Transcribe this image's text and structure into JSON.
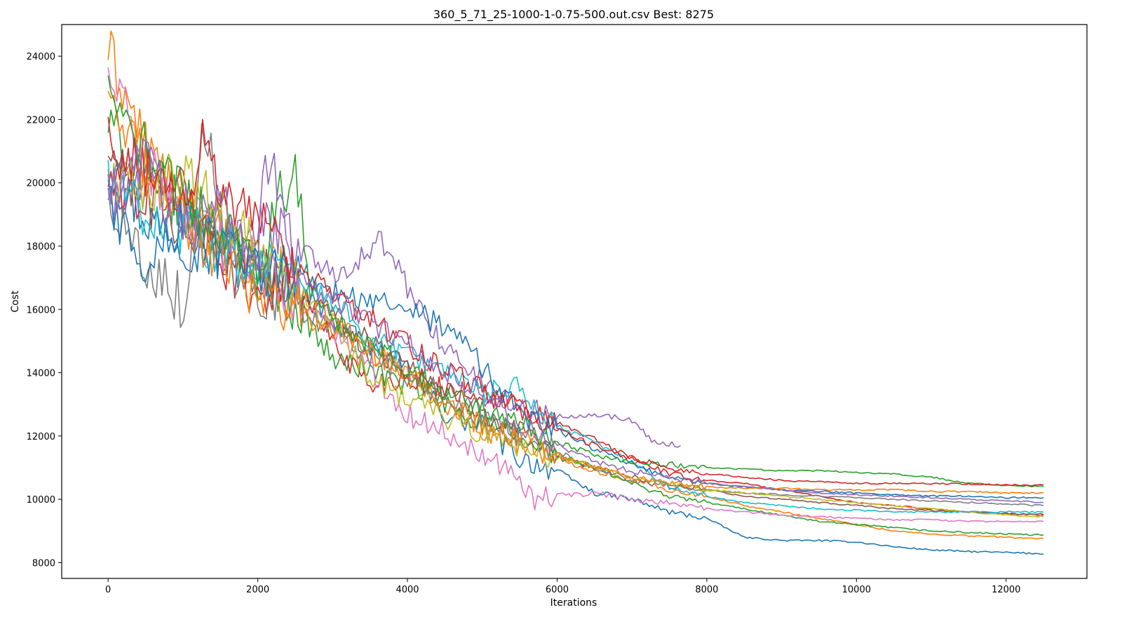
{
  "chart_data": {
    "type": "line",
    "title": "360_5_71_25-1000-1-0.75-500.out.csv Best: 8275",
    "xlabel": "Iterations",
    "ylabel": "Cost",
    "xlim": [
      -620,
      13080
    ],
    "ylim": [
      7500,
      25000
    ],
    "xticks": [
      0,
      2000,
      4000,
      6000,
      8000,
      10000,
      12000
    ],
    "xtick_labels": [
      "0",
      "2000",
      "4000",
      "6000",
      "8000",
      "10000",
      "12000"
    ],
    "yticks": [
      8000,
      10000,
      12000,
      14000,
      16000,
      18000,
      20000,
      22000,
      24000
    ],
    "ytick_labels": [
      "8000",
      "10000",
      "12000",
      "14000",
      "16000",
      "18000",
      "20000",
      "22000",
      "24000"
    ],
    "grid": false,
    "legend": "none",
    "palette": [
      "#1f77b4",
      "#ff7f0e",
      "#2ca02c",
      "#d62728",
      "#9467bd",
      "#8c564b",
      "#e377c2",
      "#7f7f7f",
      "#bcbd22",
      "#17becf"
    ],
    "series_note_not_displayed": "",
    "series": [
      {
        "color": "#1f77b4",
        "x": [
          0,
          500,
          1000,
          1500,
          2000,
          2500,
          3000,
          3500,
          4000,
          4500,
          5000,
          5500,
          6000,
          6500,
          7000,
          7500,
          8000,
          8500,
          9000,
          9500,
          10000,
          10500,
          11000,
          11500,
          12000,
          12500
        ],
        "y": [
          20500,
          18900,
          18200,
          17600,
          17300,
          16900,
          15600,
          14800,
          14100,
          12700,
          12300,
          11300,
          10900,
          10200,
          10000,
          9600,
          9400,
          8800,
          8700,
          8700,
          8650,
          8500,
          8400,
          8350,
          8320,
          8275
        ]
      },
      {
        "color": "#ff7f0e",
        "x": [
          0,
          500,
          1000,
          1500,
          2000,
          2500,
          3000,
          3500,
          4000,
          4500,
          5000,
          5500,
          6000,
          6500,
          7000,
          7500,
          8000,
          8500,
          9000,
          9500,
          10000,
          10500,
          11000,
          11500,
          12000,
          12500
        ],
        "y": [
          24200,
          21200,
          19300,
          18300,
          17000,
          16300,
          15700,
          14700,
          13900,
          13100,
          12200,
          11800,
          11300,
          10900,
          10600,
          10300,
          10100,
          9800,
          9600,
          9400,
          9200,
          9000,
          8900,
          8850,
          8800,
          8760
        ]
      },
      {
        "color": "#2ca02c",
        "x": [
          0,
          500,
          1000,
          1500,
          2000,
          2500,
          3000,
          3500,
          4000,
          4500,
          5000,
          5500,
          6000,
          6500,
          7000,
          7500,
          8000,
          8500,
          9000,
          9500,
          10000,
          10500,
          11000,
          11500,
          12000,
          12500
        ],
        "y": [
          21800,
          20300,
          19100,
          18400,
          17200,
          16200,
          14400,
          14100,
          13600,
          13000,
          12400,
          11900,
          11400,
          11000,
          10500,
          10100,
          9900,
          9700,
          9500,
          9300,
          9200,
          9100,
          9000,
          8950,
          8900,
          8870
        ]
      },
      {
        "color": "#d62728",
        "x": [
          0,
          500,
          1000,
          1500,
          2000,
          2500,
          3000,
          3500,
          4000,
          4500,
          5000,
          5500,
          6000,
          6500,
          7000,
          7500,
          8000,
          8500,
          9000,
          9500,
          10000,
          10500,
          11000,
          11500,
          12000,
          12500
        ],
        "y": [
          20000,
          19400,
          20100,
          17700,
          16500,
          17000,
          15000,
          13600,
          13900,
          13500,
          13300,
          12900,
          12400,
          11900,
          11300,
          10800,
          10600,
          10500,
          10300,
          10100,
          9900,
          9800,
          9700,
          9600,
          9550,
          9520
        ]
      },
      {
        "color": "#9467bd",
        "x": [
          0,
          500,
          1000,
          1500,
          2000,
          2500,
          3000,
          3500,
          3650,
          4000,
          4500,
          5000,
          5500,
          6000,
          6500,
          7000,
          7300,
          7650
        ],
        "y": [
          19500,
          20500,
          19200,
          18500,
          18700,
          18200,
          17100,
          17800,
          18200,
          16700,
          14800,
          13700,
          12900,
          12600,
          12700,
          12500,
          11800,
          11700
        ]
      },
      {
        "color": "#8c564b",
        "x": [
          0,
          500,
          1000,
          1500,
          2000,
          2500,
          3000,
          3500,
          4000,
          4500,
          5000,
          5500,
          6000,
          6500,
          7000,
          7500,
          8000,
          8500,
          9000,
          9500,
          10000,
          10500,
          11000,
          11500,
          12000,
          12500
        ],
        "y": [
          20800,
          19600,
          18400,
          17900,
          17600,
          16600,
          15800,
          15000,
          14300,
          13400,
          12800,
          12100,
          11300,
          11000,
          10700,
          10500,
          10300,
          10100,
          10000,
          9900,
          9800,
          9700,
          9650,
          9600,
          9550,
          9500
        ]
      },
      {
        "color": "#e377c2",
        "x": [
          0,
          500,
          1000,
          1500,
          2000,
          2500,
          3000,
          3500,
          4000,
          4500,
          5000,
          5500,
          5700,
          6000,
          6500,
          7000,
          7500,
          8000,
          8500,
          9000,
          9500,
          10000,
          10500,
          11000,
          11500,
          12000,
          12500
        ],
        "y": [
          23500,
          20600,
          19000,
          18100,
          17400,
          16300,
          15400,
          14100,
          12700,
          12100,
          11500,
          10700,
          10000,
          10100,
          10200,
          10000,
          9900,
          9700,
          9600,
          9500,
          9450,
          9400,
          9350,
          9350,
          9300,
          9300,
          9300
        ]
      },
      {
        "color": "#7f7f7f",
        "x": [
          0,
          400,
          800,
          1050,
          1250,
          1500,
          1700,
          2000,
          2500,
          3000,
          3500,
          4000,
          4500,
          5000,
          5500,
          6000,
          6500,
          7000,
          7500,
          8000,
          8500,
          9000,
          9500,
          10000,
          10500,
          11000,
          11500,
          12000,
          12500
        ],
        "y": [
          19600,
          17800,
          16900,
          15900,
          22200,
          19400,
          17300,
          16700,
          16000,
          15300,
          14600,
          13900,
          13300,
          12700,
          12000,
          11500,
          11000,
          10600,
          10400,
          10300,
          10200,
          10150,
          10100,
          10050,
          10000,
          9950,
          9900,
          9850,
          9800
        ]
      },
      {
        "color": "#bcbd22",
        "x": [
          0,
          500,
          1000,
          1500,
          2000,
          2500,
          3000,
          3500,
          4000,
          4500,
          5000,
          5500,
          6000,
          6500,
          7000,
          7500,
          8000,
          8500,
          9000,
          9500,
          10000,
          10500,
          11000,
          11500,
          12000,
          12500
        ],
        "y": [
          20100,
          19800,
          20200,
          19100,
          17800,
          16700,
          15500,
          13900,
          13200,
          12600,
          12100,
          11700,
          11300,
          11000,
          10700,
          10500,
          10300,
          10200,
          10100,
          10000,
          9900,
          9800,
          9700,
          9600,
          9500,
          9450
        ]
      },
      {
        "color": "#17becf",
        "x": [
          0,
          500,
          1000,
          1500,
          2000,
          2500,
          3000,
          3500,
          4000,
          4500,
          5000,
          5500,
          6000,
          6500,
          7000,
          7500,
          8000,
          8500,
          9000,
          9500,
          10000,
          10500,
          11000,
          11500,
          12000,
          12500
        ],
        "y": [
          20300,
          19000,
          18600,
          17900,
          17300,
          17100,
          16300,
          15000,
          14600,
          14000,
          13300,
          13600,
          12300,
          11800,
          11200,
          10400,
          10100,
          9900,
          9800,
          9700,
          9650,
          9600,
          9600,
          9600,
          9600,
          9600
        ]
      },
      {
        "color": "#1f77b4",
        "x": [
          0,
          500,
          1000,
          1500,
          2000,
          2500,
          3000,
          3500,
          4000,
          4500,
          4700,
          5000,
          5500,
          6000,
          6500,
          7000,
          7500,
          8000,
          8500,
          9000,
          9500,
          10000,
          10500,
          11000,
          11500,
          12000,
          12500
        ],
        "y": [
          19300,
          17600,
          18700,
          17900,
          17100,
          17300,
          16600,
          16200,
          16100,
          15400,
          15100,
          14200,
          12700,
          12200,
          11600,
          11100,
          10700,
          10500,
          10400,
          10300,
          10250,
          10200,
          10150,
          10100,
          10100,
          10050,
          10050
        ]
      },
      {
        "color": "#ff7f0e",
        "x": [
          0,
          500,
          1000,
          1500,
          2000,
          2500,
          3000,
          3500,
          4000,
          4500,
          5000,
          5500,
          6000,
          6500,
          7000,
          7500,
          8000,
          8500,
          9000,
          9500,
          10000,
          10500,
          11000,
          11500,
          12000,
          12500
        ],
        "y": [
          22300,
          20600,
          19000,
          17600,
          16300,
          15900,
          15400,
          14700,
          13900,
          13100,
          12300,
          11900,
          11400,
          11000,
          10700,
          10500,
          10400,
          10350,
          10350,
          10300,
          10300,
          10300,
          10250,
          10250,
          10200,
          10200
        ]
      },
      {
        "color": "#2ca02c",
        "x": [
          0,
          400,
          800,
          1200,
          1600,
          2000,
          2300,
          2500,
          2700,
          3000,
          3500,
          4000,
          4500,
          5000,
          5500,
          6000,
          6500,
          7000,
          7500,
          8000,
          8500,
          9000,
          9500,
          10000,
          10500,
          11000,
          11500,
          12000,
          12500
        ],
        "y": [
          22700,
          21300,
          20000,
          19200,
          18400,
          17500,
          19600,
          20500,
          16600,
          15700,
          14900,
          14200,
          13400,
          12800,
          12300,
          11800,
          11400,
          11200,
          11100,
          11000,
          10950,
          10900,
          10900,
          10850,
          10800,
          10700,
          10500,
          10450,
          10400
        ]
      },
      {
        "color": "#d62728",
        "x": [
          0,
          500,
          1000,
          1300,
          1500,
          2000,
          2500,
          3000,
          3500,
          4000,
          4500,
          5000,
          5500,
          6000,
          6500,
          7000,
          7500,
          8000,
          8500,
          9000,
          9500,
          10000,
          10500,
          11000,
          11500,
          12000,
          12500
        ],
        "y": [
          21300,
          20200,
          19300,
          21600,
          19600,
          18700,
          17400,
          16500,
          15700,
          14900,
          14100,
          13500,
          12900,
          12200,
          11700,
          11300,
          11000,
          10800,
          10700,
          10600,
          10550,
          10500,
          10500,
          10500,
          10480,
          10450,
          10450
        ]
      },
      {
        "color": "#9467bd",
        "x": [
          0,
          500,
          1000,
          1500,
          2000,
          2100,
          2300,
          2500,
          3000,
          3500,
          4000,
          4500,
          5000,
          5500,
          6000,
          6500,
          7000,
          7500,
          8000,
          8500,
          9000,
          9500,
          10000,
          10500,
          11000,
          11500,
          12000,
          12500
        ],
        "y": [
          19400,
          20700,
          18600,
          19300,
          17600,
          20800,
          19600,
          17000,
          16400,
          15600,
          14900,
          14000,
          13300,
          12400,
          11700,
          11200,
          10900,
          10700,
          10500,
          10400,
          10300,
          10200,
          10150,
          10100,
          10050,
          10000,
          9950,
          9900
        ]
      }
    ]
  }
}
